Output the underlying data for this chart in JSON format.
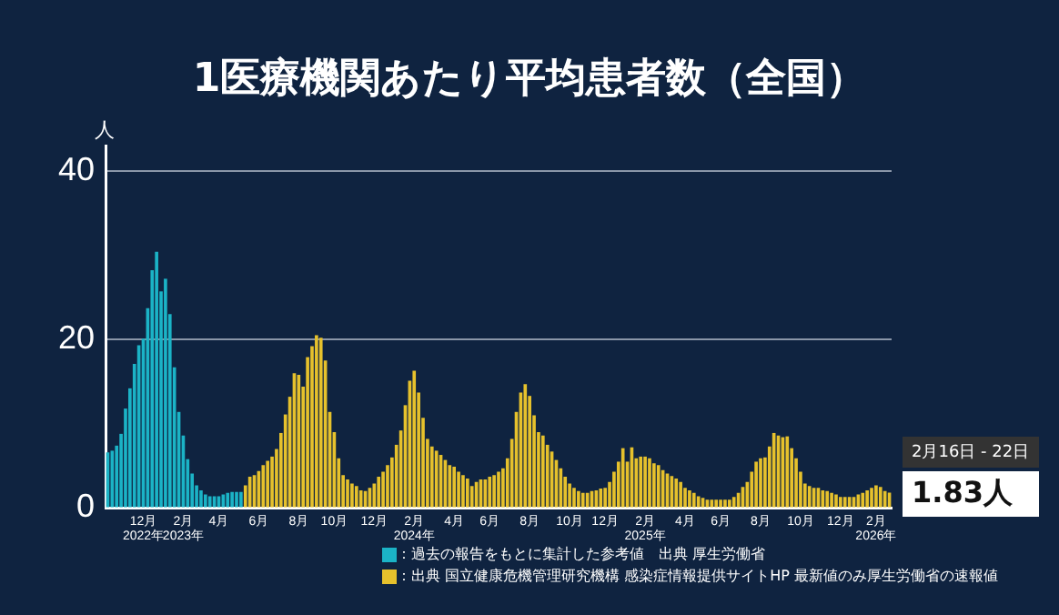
{
  "chart_data": {
    "type": "bar",
    "title": "1医療機関あたり平均患者数（全国）",
    "ylabel": "人",
    "categories": [
      null,
      null,
      null,
      null,
      null,
      null,
      null,
      null,
      "12月\n2022年",
      null,
      null,
      null,
      null,
      null,
      null,
      null,
      null,
      "2月\n2023年",
      null,
      null,
      null,
      null,
      null,
      null,
      null,
      "4月",
      null,
      null,
      null,
      null,
      null,
      null,
      null,
      null,
      "6月",
      null,
      null,
      null,
      null,
      null,
      null,
      null,
      null,
      "8月",
      null,
      null,
      null,
      null,
      null,
      null,
      null,
      "10月",
      null,
      null,
      null,
      null,
      null,
      null,
      null,
      null,
      "12月",
      null,
      null,
      null,
      null,
      null,
      null,
      null,
      null,
      "2月\n2024年",
      null,
      null,
      null,
      null,
      null,
      null,
      null,
      null,
      "4月",
      null,
      null,
      null,
      null,
      null,
      null,
      null,
      "6月",
      null,
      null,
      null,
      null,
      null,
      null,
      null,
      null,
      "8月",
      null,
      null,
      null,
      null,
      null,
      null,
      null,
      null,
      "10月",
      null,
      null,
      null,
      null,
      null,
      null,
      null,
      "12月",
      null,
      null,
      null,
      null,
      null,
      null,
      null,
      null,
      "2月\n2025年",
      null,
      null,
      null,
      null,
      null,
      null,
      null,
      null,
      "4月",
      null,
      null,
      null,
      null,
      null,
      null,
      null,
      "6月",
      null,
      null,
      null,
      null,
      null,
      null,
      null,
      null,
      "8月",
      null,
      null,
      null,
      null,
      null,
      null,
      null,
      null,
      "10月",
      null,
      null,
      null,
      null,
      null,
      null,
      null,
      null,
      "12月",
      null,
      null,
      null,
      null,
      null,
      null,
      null,
      "2月\n2026年",
      null,
      null,
      null
    ],
    "series": [
      {
        "name": "：過去の報告をもとに集計した参考値　出典 厚生労働省",
        "color": "#1bb3c6",
        "values": [
          6.6,
          6.8,
          7.4,
          8.8,
          11.8,
          14.2,
          17.1,
          19.3,
          20.1,
          23.7,
          28.2,
          30.4,
          25.7,
          27.2,
          23.0,
          16.7,
          11.4,
          8.6,
          5.8,
          4.1,
          2.7,
          2.1,
          1.6,
          1.4,
          1.4,
          1.4,
          1.6,
          1.8,
          1.9,
          1.9,
          1.9,
          null,
          null,
          null,
          null,
          null,
          null,
          null,
          null,
          null,
          null,
          null,
          null,
          null,
          null,
          null,
          null,
          null,
          null,
          null,
          null,
          null,
          null,
          null,
          null,
          null,
          null,
          null,
          null,
          null,
          null,
          null,
          null,
          null,
          null,
          null,
          null,
          null,
          null,
          null,
          null,
          null,
          null,
          null,
          null,
          null,
          null,
          null,
          null,
          null,
          null,
          null,
          null,
          null,
          null,
          null,
          null,
          null,
          null,
          null,
          null,
          null,
          null,
          null,
          null,
          null,
          null,
          null,
          null,
          null,
          null,
          null,
          null,
          null,
          null,
          null,
          null,
          null,
          null,
          null,
          null,
          null,
          null,
          null,
          null,
          null,
          null,
          null,
          null,
          null,
          null,
          null,
          null,
          null,
          null,
          null,
          null,
          null,
          null,
          null,
          null,
          null,
          null,
          null,
          null,
          null,
          null,
          null,
          null,
          null,
          null,
          null,
          null,
          null,
          null,
          null,
          null,
          null,
          null,
          null,
          null,
          null,
          null,
          null,
          null,
          null,
          null,
          null,
          null,
          null,
          null,
          null,
          null,
          null,
          null,
          null,
          null,
          null,
          null,
          null,
          null,
          null,
          null,
          null,
          null,
          null,
          null
        ]
      },
      {
        "name": "：出典 国立健康危機管理研究機構 感染症情報提供サイトHP 最新値のみ厚生労働省の速報値",
        "color": "#e6c12c",
        "values": [
          null,
          null,
          null,
          null,
          null,
          null,
          null,
          null,
          null,
          null,
          null,
          null,
          null,
          null,
          null,
          null,
          null,
          null,
          null,
          null,
          null,
          null,
          null,
          null,
          null,
          null,
          null,
          null,
          null,
          null,
          null,
          2.7,
          3.7,
          3.9,
          4.4,
          5.1,
          5.6,
          6.1,
          7.0,
          8.9,
          11.1,
          13.2,
          16.0,
          15.8,
          14.4,
          17.9,
          19.2,
          20.5,
          20.2,
          17.5,
          11.4,
          9.0,
          5.9,
          3.9,
          3.4,
          2.9,
          2.6,
          2.1,
          2.0,
          2.4,
          2.9,
          3.7,
          4.3,
          5.1,
          6.0,
          7.5,
          9.2,
          12.2,
          15.1,
          16.3,
          13.7,
          10.7,
          8.2,
          7.3,
          6.8,
          6.3,
          5.7,
          5.1,
          4.9,
          4.3,
          3.9,
          3.5,
          2.6,
          3.1,
          3.4,
          3.4,
          3.7,
          3.9,
          4.3,
          4.7,
          5.9,
          8.2,
          11.4,
          13.7,
          14.7,
          13.3,
          11.0,
          9.0,
          8.6,
          7.5,
          6.7,
          5.7,
          4.7,
          3.7,
          2.9,
          2.4,
          2.0,
          1.8,
          1.8,
          2.0,
          2.1,
          2.3,
          2.4,
          3.1,
          4.3,
          5.5,
          7.1,
          5.5,
          7.2,
          5.9,
          6.1,
          6.1,
          5.9,
          5.3,
          5.1,
          4.5,
          4.1,
          3.8,
          3.5,
          3.1,
          2.4,
          2.1,
          1.8,
          1.4,
          1.2,
          1.0,
          1.0,
          1.0,
          1.0,
          1.0,
          1.0,
          1.3,
          1.8,
          2.5,
          3.1,
          4.3,
          5.5,
          5.9,
          6.0,
          7.3,
          8.9,
          8.6,
          8.4,
          8.5,
          7.1,
          5.9,
          4.3,
          2.9,
          2.6,
          2.4,
          2.4,
          2.1,
          2.0,
          1.8,
          1.6,
          1.3,
          1.3,
          1.3,
          1.3,
          1.6,
          1.8,
          2.1,
          2.4,
          2.7,
          2.5,
          2.0,
          1.83
        ]
      }
    ],
    "ylim": [
      0,
      43
    ],
    "yticks": [
      0,
      20,
      40
    ],
    "grid": "y",
    "legend": "bottom",
    "annotations": [
      "2月16日 - 22日",
      "1.83人"
    ]
  }
}
